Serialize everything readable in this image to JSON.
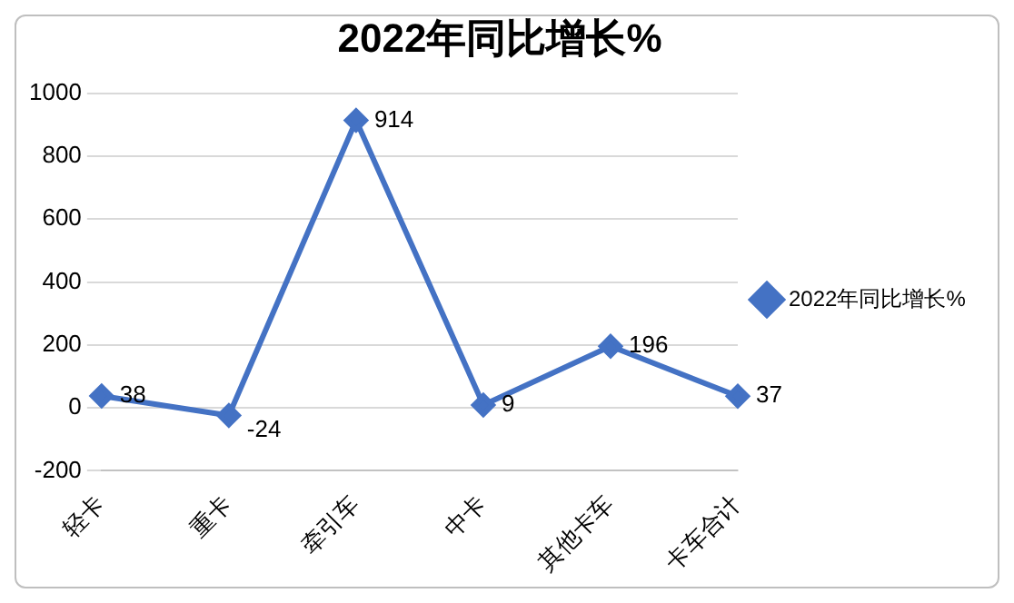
{
  "chart_data": {
    "type": "line",
    "title": "2022年同比增长%",
    "categories": [
      "轻卡",
      "重卡",
      "牵引车",
      "中卡",
      "其他卡车",
      "卡车合计"
    ],
    "series": [
      {
        "name": "2022年同比增长%",
        "color": "#4472c4",
        "values": [
          38,
          -24,
          914,
          9,
          196,
          37
        ]
      }
    ],
    "ylim": [
      -200,
      1000
    ],
    "yticks": [
      -200,
      0,
      200,
      400,
      600,
      800,
      1000
    ],
    "grid": "y",
    "legend": "right",
    "marker": "diamond",
    "line_style": "solid",
    "data_labels": true
  }
}
